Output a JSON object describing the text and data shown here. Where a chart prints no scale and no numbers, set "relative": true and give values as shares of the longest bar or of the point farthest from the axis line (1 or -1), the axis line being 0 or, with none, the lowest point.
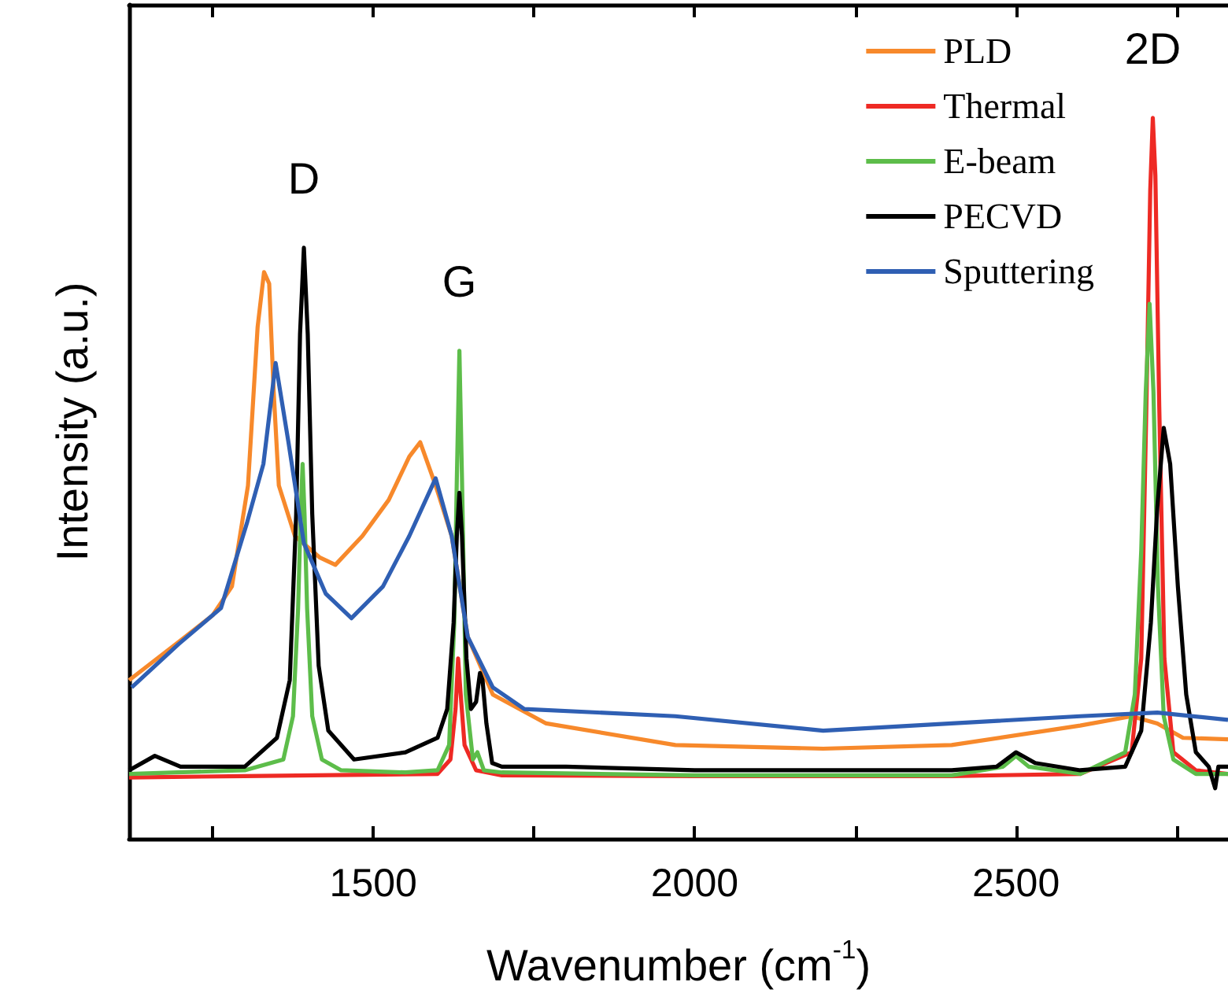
{
  "chart_data": {
    "type": "line",
    "relative": true,
    "xlabel": "Wavenumber (cm$^{-1}$)",
    "ylabel": "Intensity (a.u.)",
    "xlim": [
      1120,
      2830
    ],
    "xticks": [
      {
        "value": 1250,
        "label": null
      },
      1500,
      {
        "value": 1750,
        "label": null
      },
      2000,
      {
        "value": 2250,
        "label": null
      },
      2500,
      {
        "value": 2750,
        "label": null
      }
    ],
    "legend": "top right",
    "marker": "none",
    "grid": false,
    "annotations": [
      {
        "text": "D",
        "x": 1392,
        "y": 0.82
      },
      {
        "text": "G",
        "x": 1634,
        "y": 0.677
      },
      {
        "text": "2D",
        "x": 2713,
        "y": 1.0
      }
    ],
    "series": [
      {
        "name": "PLD",
        "color": "#f7892b",
        "x": [
          1120,
          1200,
          1250,
          1280,
          1305,
          1320,
          1330,
          1338,
          1345,
          1353,
          1378,
          1417,
          1441,
          1483,
          1524,
          1556,
          1573,
          1597,
          1622,
          1647,
          1686,
          1769,
          1970,
          2200,
          2400,
          2600,
          2680,
          2720,
          2760,
          2830
        ],
        "values": [
          0.22,
          0.275,
          0.31,
          0.35,
          0.49,
          0.71,
          0.786,
          0.77,
          0.62,
          0.49,
          0.42,
          0.39,
          0.38,
          0.42,
          0.47,
          0.53,
          0.55,
          0.49,
          0.42,
          0.28,
          0.2,
          0.16,
          0.13,
          0.125,
          0.13,
          0.157,
          0.17,
          0.16,
          0.14,
          0.138
        ]
      },
      {
        "name": "Thermal",
        "color": "#ee2a24",
        "x": [
          1120,
          1300,
          1600,
          1620,
          1628,
          1632,
          1636,
          1642,
          1660,
          1700,
          2000,
          2400,
          2600,
          2680,
          2695,
          2703,
          2709,
          2713,
          2717,
          2723,
          2731,
          2745,
          2780,
          2830
        ],
        "values": [
          0.085,
          0.087,
          0.09,
          0.11,
          0.18,
          0.25,
          0.2,
          0.13,
          0.095,
          0.088,
          0.087,
          0.087,
          0.09,
          0.12,
          0.25,
          0.6,
          0.9,
          1.0,
          0.92,
          0.6,
          0.25,
          0.12,
          0.095,
          0.09
        ]
      },
      {
        "name": "E-beam",
        "color": "#5dbd4a",
        "x": [
          1120,
          1300,
          1360,
          1375,
          1383,
          1387,
          1390,
          1393,
          1397,
          1405,
          1420,
          1450,
          1550,
          1600,
          1618,
          1626,
          1630,
          1634,
          1638,
          1644,
          1655,
          1662,
          1672,
          1700,
          2000,
          2400,
          2480,
          2500,
          2520,
          2600,
          2670,
          2685,
          2695,
          2702,
          2708,
          2714,
          2721,
          2730,
          2745,
          2780,
          2830
        ],
        "values": [
          0.09,
          0.095,
          0.11,
          0.17,
          0.32,
          0.45,
          0.52,
          0.45,
          0.32,
          0.17,
          0.11,
          0.095,
          0.092,
          0.095,
          0.13,
          0.3,
          0.5,
          0.677,
          0.5,
          0.2,
          0.11,
          0.12,
          0.095,
          0.092,
          0.088,
          0.088,
          0.1,
          0.115,
          0.1,
          0.09,
          0.12,
          0.2,
          0.4,
          0.62,
          0.742,
          0.62,
          0.35,
          0.17,
          0.11,
          0.09,
          0.09
        ]
      },
      {
        "name": "PECVD",
        "color": "#000000",
        "x": [
          1120,
          1160,
          1200,
          1300,
          1350,
          1370,
          1380,
          1386,
          1392,
          1398,
          1405,
          1415,
          1430,
          1470,
          1550,
          1600,
          1615,
          1625,
          1630,
          1634,
          1638,
          1645,
          1652,
          1660,
          1666,
          1670,
          1676,
          1685,
          1700,
          1800,
          2000,
          2200,
          2400,
          2470,
          2500,
          2530,
          2600,
          2670,
          2695,
          2710,
          2720,
          2730,
          2740,
          2752,
          2765,
          2780,
          2800,
          2810,
          2815,
          2830
        ],
        "values": [
          0.095,
          0.115,
          0.1,
          0.1,
          0.14,
          0.22,
          0.45,
          0.7,
          0.82,
          0.7,
          0.45,
          0.24,
          0.15,
          0.11,
          0.12,
          0.14,
          0.18,
          0.3,
          0.42,
          0.48,
          0.42,
          0.25,
          0.18,
          0.19,
          0.23,
          0.22,
          0.16,
          0.105,
          0.1,
          0.1,
          0.095,
          0.095,
          0.095,
          0.1,
          0.12,
          0.105,
          0.095,
          0.1,
          0.15,
          0.3,
          0.46,
          0.57,
          0.52,
          0.35,
          0.2,
          0.12,
          0.1,
          0.07,
          0.1,
          0.1
        ]
      },
      {
        "name": "Sputtering",
        "color": "#2f5fb3",
        "x": [
          1124,
          1197,
          1263,
          1304,
          1329,
          1348,
          1368,
          1392,
          1426,
          1466,
          1515,
          1556,
          1597,
          1622,
          1647,
          1686,
          1735,
          1970,
          2200,
          2400,
          2600,
          2720,
          2830
        ],
        "values": [
          0.21,
          0.27,
          0.32,
          0.44,
          0.52,
          0.66,
          0.55,
          0.41,
          0.34,
          0.306,
          0.35,
          0.42,
          0.5,
          0.42,
          0.28,
          0.21,
          0.18,
          0.17,
          0.15,
          0.16,
          0.17,
          0.175,
          0.165
        ]
      }
    ]
  }
}
